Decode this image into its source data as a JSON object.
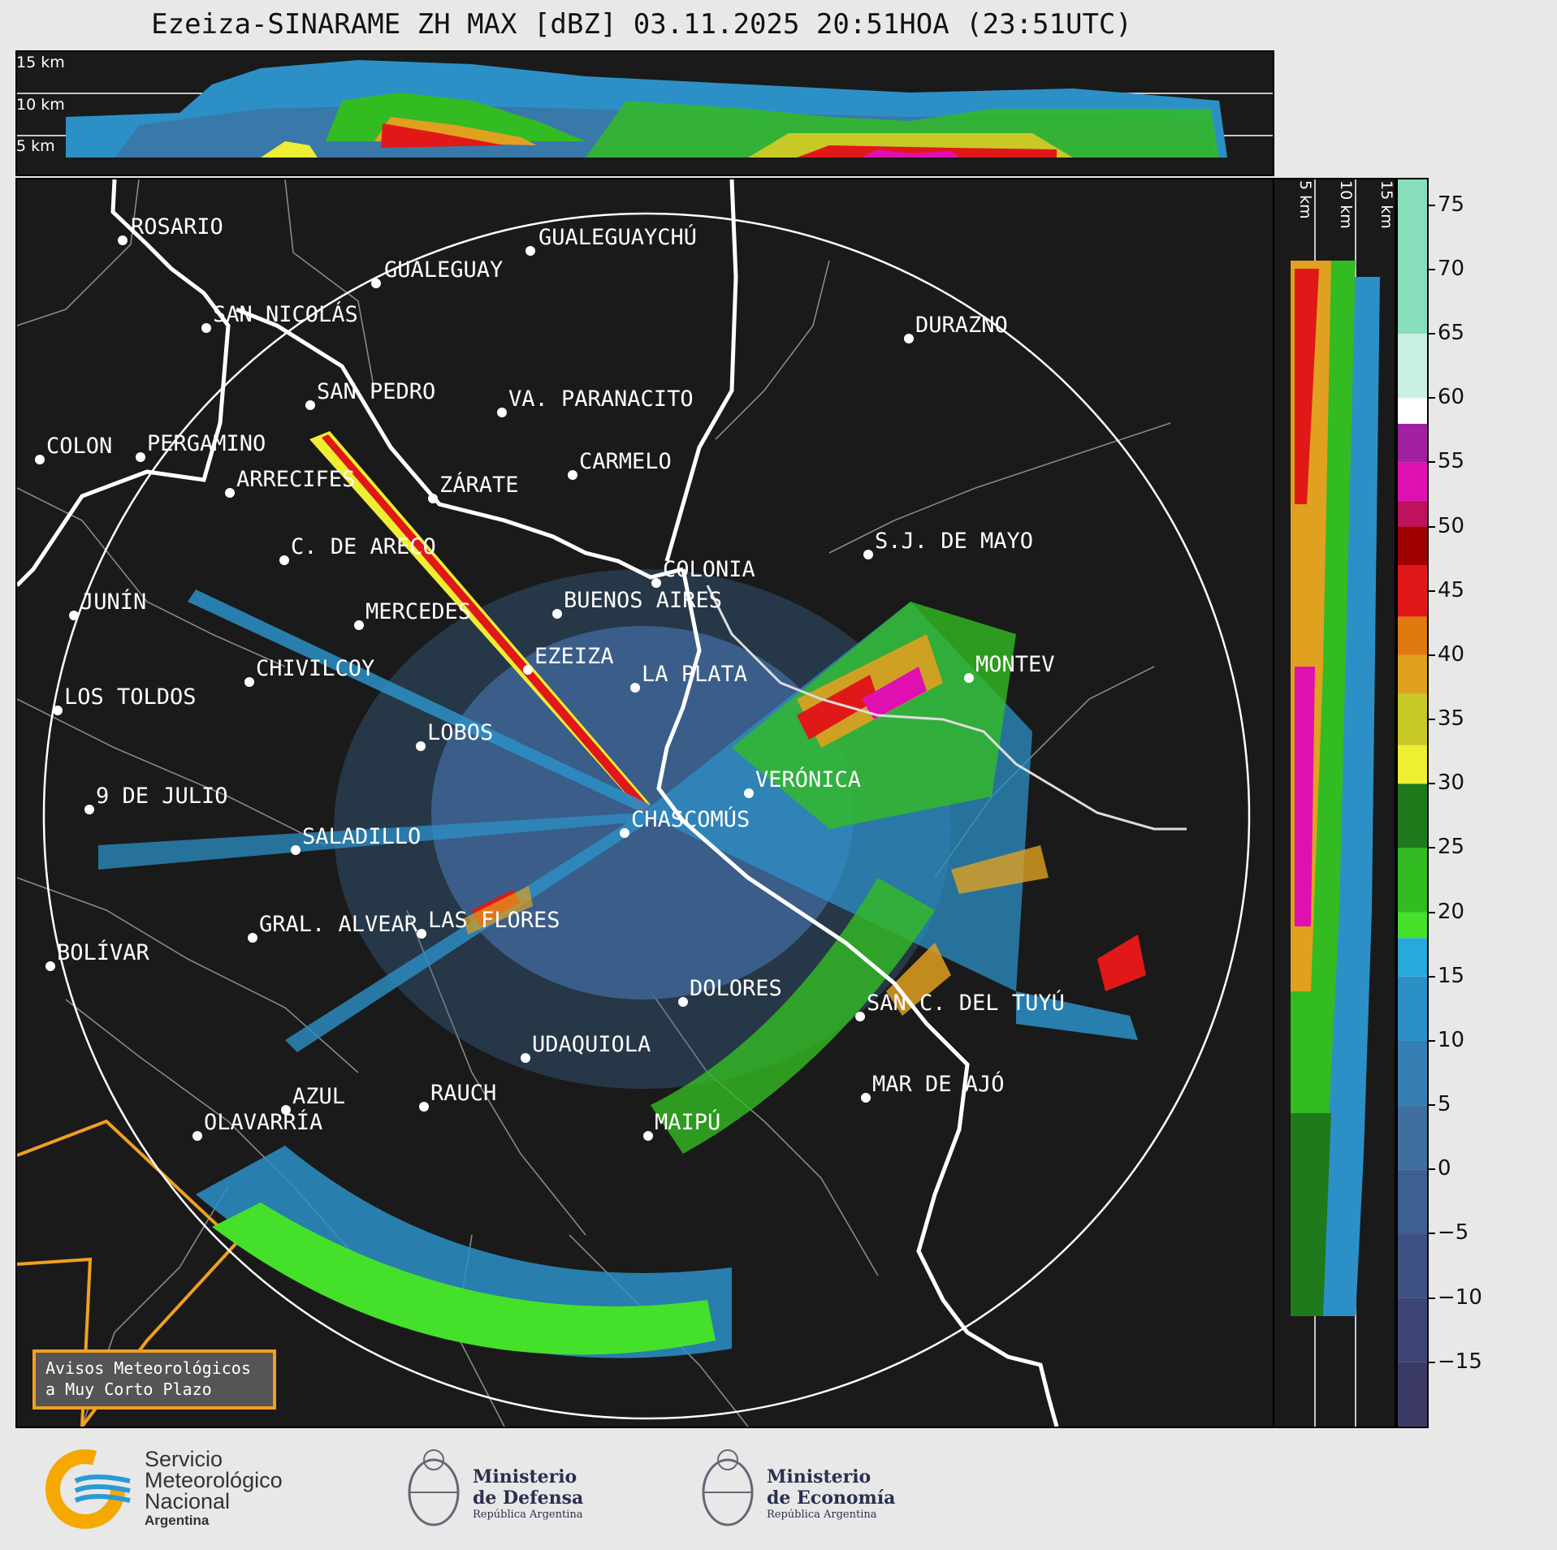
{
  "title": "Ezeiza-SINARAME ZH MAX [dBZ] 03.11.2025 20:51HOA (23:51UTC)",
  "top_panel": {
    "alt_labels": [
      "15 km",
      "10 km",
      "5 km"
    ]
  },
  "side_panel": {
    "alt_labels": [
      "5 km",
      "10 km",
      "15 km"
    ]
  },
  "colorbar": {
    "ticks": [
      "75",
      "70",
      "65",
      "60",
      "55",
      "50",
      "45",
      "40",
      "35",
      "30",
      "25",
      "20",
      "15",
      "10",
      "5",
      "0",
      "−5",
      "−10",
      "−15"
    ],
    "tick_values": [
      75,
      70,
      65,
      60,
      55,
      50,
      45,
      40,
      35,
      30,
      25,
      20,
      15,
      10,
      5,
      0,
      -5,
      -10,
      -15
    ],
    "range": [
      -20,
      77
    ],
    "segments": [
      {
        "from": -20,
        "to": -15,
        "color": "#3b3a66"
      },
      {
        "from": -15,
        "to": -10,
        "color": "#3c4576"
      },
      {
        "from": -10,
        "to": -5,
        "color": "#3d5283"
      },
      {
        "from": -5,
        "to": 0,
        "color": "#3e6090"
      },
      {
        "from": 0,
        "to": 5,
        "color": "#3f6f9e"
      },
      {
        "from": 5,
        "to": 10,
        "color": "#367fb4"
      },
      {
        "from": 10,
        "to": 15,
        "color": "#2c90c7"
      },
      {
        "from": 15,
        "to": 18,
        "color": "#27a9dc"
      },
      {
        "from": 18,
        "to": 20,
        "color": "#44e02a"
      },
      {
        "from": 20,
        "to": 25,
        "color": "#33bb22"
      },
      {
        "from": 25,
        "to": 30,
        "color": "#1f7a1c"
      },
      {
        "from": 30,
        "to": 33,
        "color": "#eeee33"
      },
      {
        "from": 33,
        "to": 37,
        "color": "#c8c827"
      },
      {
        "from": 37,
        "to": 40,
        "color": "#e0a020"
      },
      {
        "from": 40,
        "to": 43,
        "color": "#e07a10"
      },
      {
        "from": 43,
        "to": 47,
        "color": "#e01818"
      },
      {
        "from": 47,
        "to": 50,
        "color": "#a00000"
      },
      {
        "from": 50,
        "to": 52,
        "color": "#c01060"
      },
      {
        "from": 52,
        "to": 55,
        "color": "#e010b0"
      },
      {
        "from": 55,
        "to": 58,
        "color": "#a020a0"
      },
      {
        "from": 58,
        "to": 60,
        "color": "#ffffff"
      },
      {
        "from": 60,
        "to": 65,
        "color": "#c8f0e0"
      },
      {
        "from": 65,
        "to": 77,
        "color": "#88ddbb"
      }
    ]
  },
  "cities": [
    {
      "name": "ROSARIO"
    },
    {
      "name": "GUALEGUAYCHÚ"
    },
    {
      "name": "GUALEGUAY"
    },
    {
      "name": "SAN NICOLÁS"
    },
    {
      "name": "DURAZNO"
    },
    {
      "name": "SAN PEDRO"
    },
    {
      "name": "VA. PARANACITO"
    },
    {
      "name": "COLON"
    },
    {
      "name": "PERGAMINO"
    },
    {
      "name": "CARMELO"
    },
    {
      "name": "ARRECIFES"
    },
    {
      "name": "ZÁRATE"
    },
    {
      "name": "S.J. DE MAYO"
    },
    {
      "name": "C. DE ARECO"
    },
    {
      "name": "COLONIA"
    },
    {
      "name": "JUNÍN"
    },
    {
      "name": "BUENOS AIRES"
    },
    {
      "name": "MERCEDES"
    },
    {
      "name": "EZEIZA"
    },
    {
      "name": "MONTEV"
    },
    {
      "name": "CHIVILCOY"
    },
    {
      "name": "LA PLATA"
    },
    {
      "name": "LOS TOLDOS"
    },
    {
      "name": "LOBOS"
    },
    {
      "name": "VERÓNICA"
    },
    {
      "name": "9 DE JULIO"
    },
    {
      "name": "CHASCOMÚS"
    },
    {
      "name": "SALADILLO"
    },
    {
      "name": "GRAL. ALVEAR"
    },
    {
      "name": "LAS FLORES"
    },
    {
      "name": "BOLÍVAR"
    },
    {
      "name": "DOLORES"
    },
    {
      "name": "SAN C. DEL TUYÚ"
    },
    {
      "name": "UDAQUIOLA"
    },
    {
      "name": "MAR DE AJÓ"
    },
    {
      "name": "AZUL"
    },
    {
      "name": "RAUCH"
    },
    {
      "name": "MAIPÚ"
    },
    {
      "name": "OLAVARRÍA"
    }
  ],
  "avisos": {
    "line1": "Avisos Meteorológicos",
    "line2": "a Muy Corto Plazo"
  },
  "footer": {
    "smn": {
      "line1": "Servicio",
      "line2": "Meteorológico",
      "line3": "Nacional",
      "line4": "Argentina"
    },
    "defensa": {
      "line1": "Ministerio",
      "line2": "de Defensa",
      "line3": "República Argentina"
    },
    "economia": {
      "line1": "Ministerio",
      "line2": "de Economía",
      "line3": "República Argentina"
    },
    "colors": {
      "smn_orange": "#f5a800",
      "smn_blue": "#2a9ad5"
    }
  }
}
